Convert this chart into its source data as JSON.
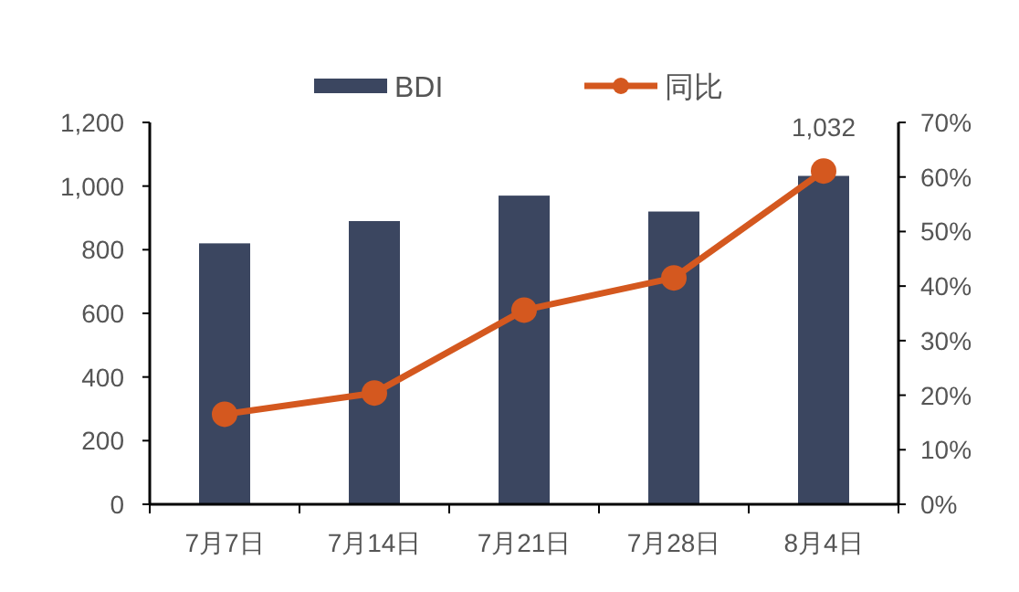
{
  "chart_data": {
    "type": "bar",
    "categories": [
      "7月7日",
      "7月14日",
      "7月21日",
      "7月28日",
      "8月4日"
    ],
    "series": [
      {
        "name": "BDI",
        "color": "#3b4660",
        "values": [
          820,
          890,
          970,
          920,
          1032
        ],
        "value_labels": [
          null,
          null,
          null,
          null,
          "1,032"
        ]
      },
      {
        "name": "同比",
        "type": "line",
        "axis": "y2",
        "color": "#d4581f",
        "values": [
          16.5,
          20.4,
          35.6,
          41.5,
          61.1
        ]
      }
    ],
    "ylim": [
      0,
      1200
    ],
    "yticks": [
      0,
      200,
      400,
      600,
      800,
      {
        "value": 1000,
        "label": "1,000"
      },
      {
        "value": 1200,
        "label": "1,200"
      }
    ],
    "y2lim": [
      0,
      70
    ],
    "y2ticks": [
      {
        "value": 0,
        "label": "0%"
      },
      {
        "value": 10,
        "label": "10%"
      },
      {
        "value": 20,
        "label": "20%"
      },
      {
        "value": 30,
        "label": "30%"
      },
      {
        "value": 40,
        "label": "40%"
      },
      {
        "value": 50,
        "label": "50%"
      },
      {
        "value": 60,
        "label": "60%"
      },
      {
        "value": 70,
        "label": "70%"
      }
    ],
    "legend": "top",
    "marker": "circle"
  }
}
